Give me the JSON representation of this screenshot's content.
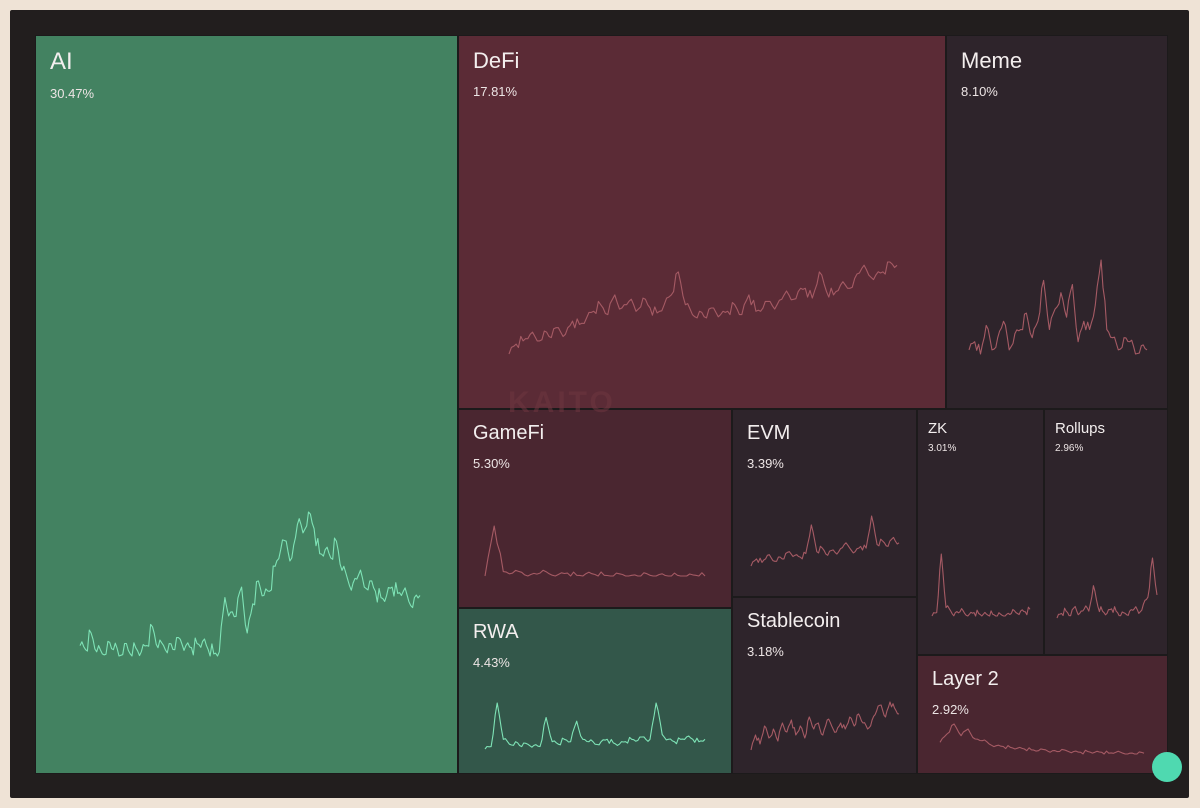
{
  "chart_data": {
    "type": "treemap",
    "watermark": "KAITO",
    "colors": {
      "background": "#221e1e",
      "positive_strong": "#438261",
      "positive": "#33574a",
      "negative_strong": "#5b2b36",
      "negative": "#4a2630",
      "neutral_dark": "#2e242b",
      "line_positive": "#7ee3b6",
      "line_negative": "#a55a64"
    },
    "tiles": [
      {
        "key": "ai",
        "label": "AI",
        "share": "30.47%",
        "value": 30.47,
        "trend": "up",
        "series": [
          24,
          22,
          30,
          21,
          20,
          26,
          22,
          19,
          25,
          20,
          23,
          21,
          24,
          33,
          23,
          24,
          25,
          22,
          27,
          24,
          23,
          25,
          26,
          22,
          20,
          21,
          47,
          40,
          38,
          52,
          30,
          44,
          55,
          48,
          50,
          62,
          70,
          74,
          66,
          82,
          78,
          88,
          80,
          68,
          70,
          66,
          74,
          60,
          56,
          54,
          58,
          52,
          55,
          50,
          47,
          48,
          52,
          49,
          50,
          45,
          47,
          48
        ]
      },
      {
        "key": "defi",
        "label": "DeFi",
        "share": "17.81%",
        "value": 17.81,
        "trend": "down",
        "series": [
          22,
          28,
          30,
          34,
          30,
          36,
          32,
          38,
          34,
          42,
          40,
          44,
          48,
          52,
          46,
          58,
          50,
          54,
          48,
          56,
          50,
          47,
          52,
          58,
          72,
          52,
          46,
          48,
          44,
          50,
          46,
          48,
          52,
          46,
          58,
          48,
          50,
          54,
          52,
          58,
          55,
          60,
          62,
          56,
          72,
          60,
          58,
          64,
          62,
          68,
          74,
          70,
          70,
          72,
          78,
          76
        ]
      },
      {
        "key": "meme",
        "label": "Meme",
        "share": "8.10%",
        "value": 8.1,
        "trend": "down",
        "series": [
          30,
          34,
          28,
          42,
          30,
          36,
          44,
          30,
          38,
          40,
          48,
          36,
          44,
          64,
          40,
          50,
          58,
          46,
          62,
          34,
          44,
          40,
          52,
          74,
          40,
          36,
          30,
          36,
          34,
          28,
          32,
          30
        ]
      },
      {
        "key": "gamefi",
        "label": "GameFi",
        "share": "5.30%",
        "value": 5.3,
        "trend": "down",
        "series": [
          20,
          88,
          26,
          24,
          25,
          22,
          24,
          23,
          22,
          24,
          21,
          23,
          22,
          21,
          20,
          22,
          21,
          20,
          21,
          22,
          20,
          21,
          20,
          21,
          20
        ]
      },
      {
        "key": "evm",
        "label": "3.39%",
        "label_text": "EVM",
        "share": "3.39%",
        "value": 3.39,
        "trend": "down",
        "series": [
          22,
          26,
          24,
          28,
          25,
          27,
          26,
          30,
          28,
          27,
          29,
          45,
          30,
          32,
          28,
          31,
          30,
          34,
          32,
          30,
          33,
          32,
          50,
          34,
          36,
          33,
          38,
          35
        ]
      },
      {
        "key": "zk",
        "label": "ZK",
        "share": "3.01%",
        "value": 3.01,
        "trend": "down",
        "series": [
          20,
          24,
          94,
          30,
          26,
          24,
          25,
          23,
          22,
          24,
          23,
          22,
          21,
          22,
          20,
          21,
          22,
          23,
          24,
          26,
          25,
          28
        ]
      },
      {
        "key": "rollups",
        "label": "Rollups",
        "share": "2.96%",
        "value": 2.96,
        "trend": "down",
        "series": [
          30,
          34,
          36,
          32,
          40,
          34,
          38,
          36,
          58,
          40,
          36,
          34,
          38,
          36,
          32,
          34,
          36,
          38,
          34,
          42,
          48,
          82,
          50
        ]
      },
      {
        "key": "rwa",
        "label": "RWA",
        "share": "4.43%",
        "value": 4.43,
        "trend": "up",
        "series": [
          22,
          24,
          60,
          30,
          26,
          28,
          24,
          26,
          25,
          24,
          48,
          28,
          26,
          30,
          28,
          45,
          30,
          28,
          26,
          28,
          30,
          27,
          26,
          28,
          30,
          29,
          32,
          30,
          60,
          34,
          30,
          28,
          30,
          32,
          30,
          28,
          30
        ]
      },
      {
        "key": "stablecoin",
        "label": "Stablecoin",
        "share": "3.18%",
        "value": 3.18,
        "trend": "down",
        "series": [
          30,
          40,
          34,
          46,
          38,
          44,
          36,
          48,
          42,
          50,
          40,
          46,
          38,
          52,
          44,
          48,
          40,
          50,
          46,
          42,
          48,
          44,
          52,
          46,
          54,
          48,
          44,
          50,
          56,
          60,
          52,
          62,
          58,
          54
        ]
      },
      {
        "key": "layer2",
        "label": "Layer 2",
        "share": "2.92%",
        "value": 2.92,
        "trend": "down",
        "series": [
          40,
          50,
          62,
          48,
          56,
          44,
          42,
          38,
          36,
          35,
          34,
          33,
          32,
          31,
          30,
          31,
          30,
          29,
          30,
          29,
          28,
          29,
          28,
          28,
          27,
          28,
          27,
          27,
          26,
          27
        ]
      }
    ]
  }
}
